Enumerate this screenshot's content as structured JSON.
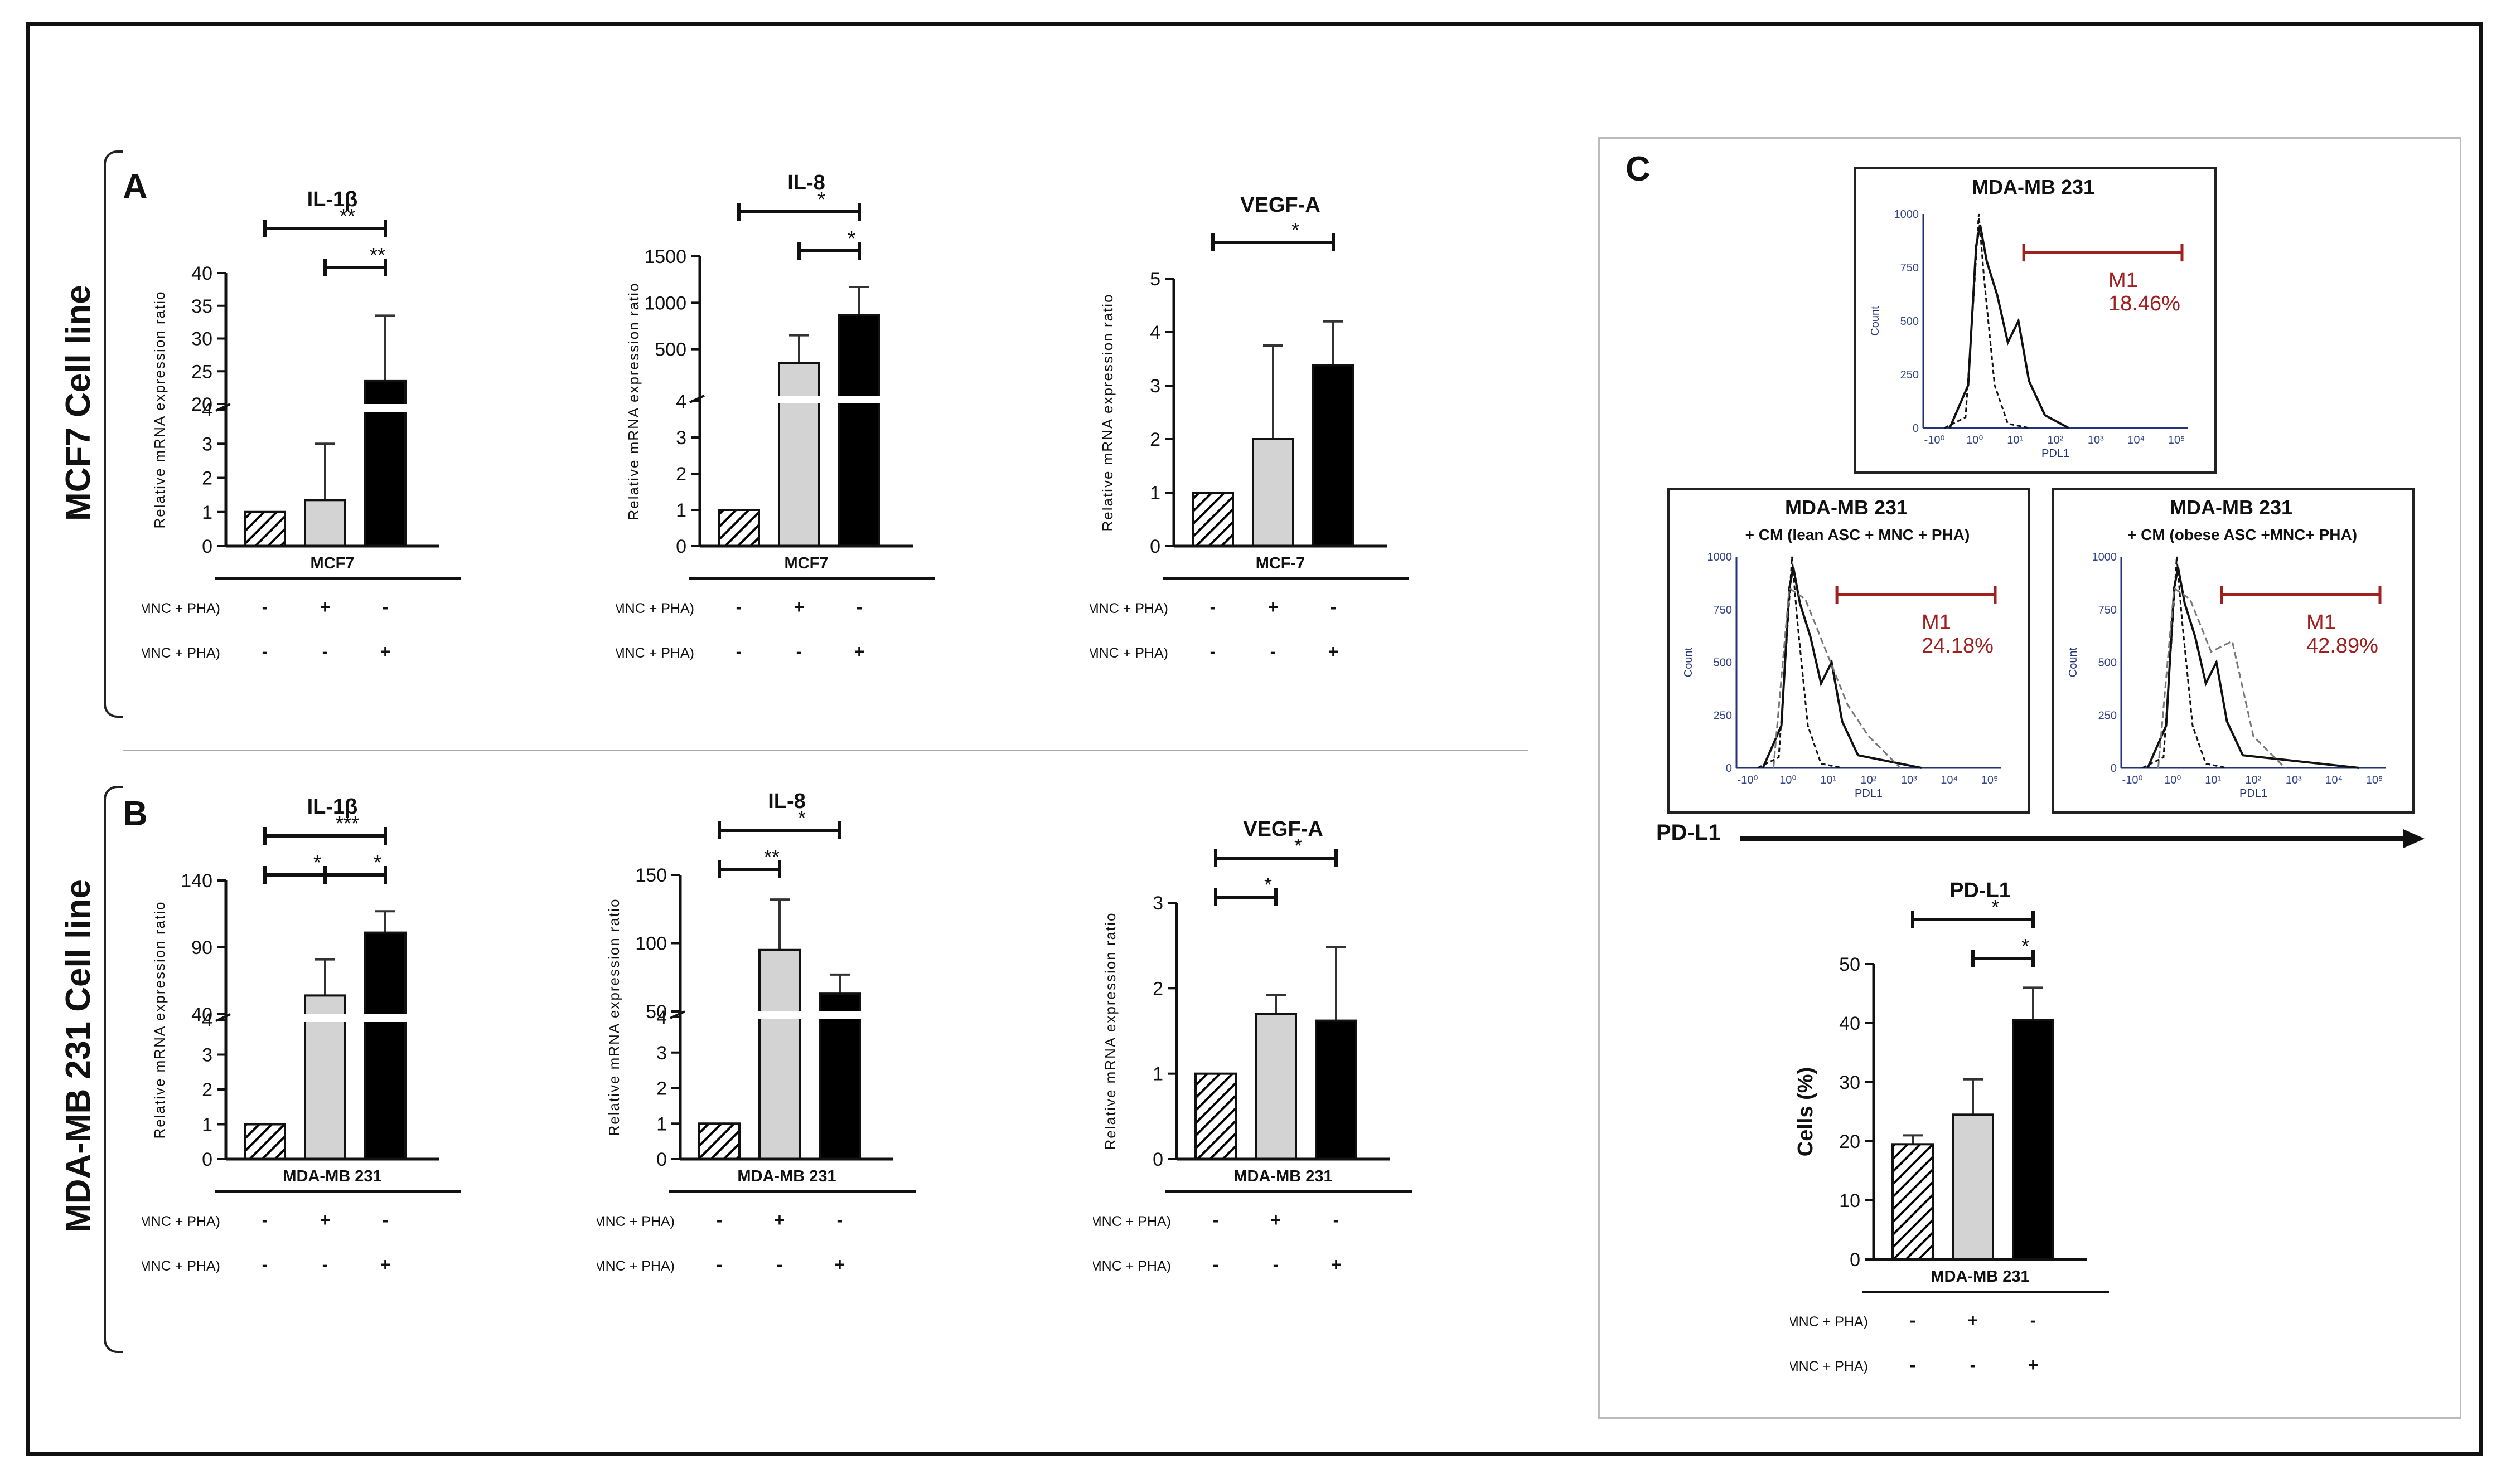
{
  "row_labels": {
    "top": "MCF7 Cell line",
    "bottom": "MDA-MB 231 Cell line"
  },
  "panel_letters": {
    "a": "A",
    "b": "B",
    "c": "C"
  },
  "conditions": {
    "lean": "CM (lean ASC + MNC + PHA)",
    "obese": "CM (obese ASC + MNC + PHA)"
  },
  "colors": {
    "control": "hatched",
    "lean": "#d3d3d3",
    "obese": "#000000",
    "gate": "#a02020"
  },
  "chart_data": [
    {
      "id": "a-il1b",
      "type": "bar",
      "title": "IL-1β",
      "group_label": "MCF7",
      "ylabel": "Relative mRNA expression ratio",
      "axis_break": true,
      "ylim_lower": [
        0,
        4
      ],
      "ylim_upper": [
        20,
        40
      ],
      "yticks_lower": [
        "0",
        "1",
        "2",
        "3",
        "4"
      ],
      "yticks_upper": [
        "20",
        "25",
        "30",
        "35",
        "40"
      ],
      "categories": [
        "control",
        "lean",
        "obese"
      ],
      "values": [
        1,
        1.35,
        23.5
      ],
      "errors": [
        0,
        1.65,
        10
      ],
      "lean_signs": [
        "-",
        "+",
        "-"
      ],
      "obese_signs": [
        "-",
        "-",
        "+"
      ],
      "significance": [
        {
          "from": 0,
          "to": 2,
          "label": "**"
        },
        {
          "from": 1,
          "to": 2,
          "label": "**"
        }
      ]
    },
    {
      "id": "a-il8",
      "type": "bar",
      "title": "IL-8",
      "group_label": "MCF7",
      "ylabel": "Relative mRNA expression ratio",
      "axis_break": true,
      "ylim_lower": [
        0,
        4
      ],
      "ylim_upper": [
        0,
        1500
      ],
      "yticks_lower": [
        "0",
        "1",
        "2",
        "3",
        "4"
      ],
      "yticks_upper": [
        "500",
        "1000",
        "1500"
      ],
      "categories": [
        "control",
        "lean",
        "obese"
      ],
      "values": [
        1,
        350,
        870
      ],
      "errors": [
        0,
        300,
        300
      ],
      "lean_signs": [
        "-",
        "+",
        "-"
      ],
      "obese_signs": [
        "-",
        "-",
        "+"
      ],
      "significance": [
        {
          "from": 0,
          "to": 2,
          "label": "*"
        },
        {
          "from": 1,
          "to": 2,
          "label": "*"
        }
      ]
    },
    {
      "id": "a-vegfa",
      "type": "bar",
      "title": "VEGF-A",
      "group_label": "MCF-7",
      "ylabel": "Relative mRNA expression ratio",
      "axis_break": false,
      "ylim": [
        0,
        5
      ],
      "yticks": [
        "0",
        "1",
        "2",
        "3",
        "4",
        "5"
      ],
      "categories": [
        "control",
        "lean",
        "obese"
      ],
      "values": [
        1,
        2.0,
        3.38
      ],
      "errors": [
        0,
        1.75,
        0.82
      ],
      "lean_signs": [
        "-",
        "+",
        "-"
      ],
      "obese_signs": [
        "-",
        "-",
        "+"
      ],
      "significance": [
        {
          "from": 0,
          "to": 2,
          "label": "*"
        }
      ]
    },
    {
      "id": "b-il1b",
      "type": "bar",
      "title": "IL-1β",
      "group_label": "MDA-MB 231",
      "ylabel": "Relative mRNA expression ratio",
      "axis_break": true,
      "ylim_lower": [
        0,
        4
      ],
      "ylim_upper": [
        40,
        140
      ],
      "yticks_lower": [
        "0",
        "1",
        "2",
        "3",
        "4"
      ],
      "yticks_upper": [
        "40",
        "90",
        "140"
      ],
      "categories": [
        "control",
        "lean",
        "obese"
      ],
      "values": [
        1,
        54,
        101
      ],
      "errors": [
        0,
        27,
        16
      ],
      "lean_signs": [
        "-",
        "+",
        "-"
      ],
      "obese_signs": [
        "-",
        "-",
        "+"
      ],
      "significance": [
        {
          "from": 0,
          "to": 1,
          "label": "*"
        },
        {
          "from": 0,
          "to": 2,
          "label": "***"
        },
        {
          "from": 1,
          "to": 2,
          "label": "*"
        }
      ]
    },
    {
      "id": "b-il8",
      "type": "bar",
      "title": "IL-8",
      "group_label": "MDA-MB 231",
      "ylabel": "Relative mRNA expression ratio",
      "axis_break": true,
      "ylim_lower": [
        0,
        4
      ],
      "ylim_upper": [
        50,
        150
      ],
      "yticks_lower": [
        "0",
        "1",
        "2",
        "3",
        "4"
      ],
      "yticks_upper": [
        "50",
        "100",
        "150"
      ],
      "categories": [
        "control",
        "lean",
        "obese"
      ],
      "values": [
        1,
        95,
        63
      ],
      "errors": [
        0,
        37,
        14
      ],
      "lean_signs": [
        "-",
        "+",
        "-"
      ],
      "obese_signs": [
        "-",
        "-",
        "+"
      ],
      "significance": [
        {
          "from": 0,
          "to": 1,
          "label": "**"
        },
        {
          "from": 0,
          "to": 2,
          "label": "*"
        }
      ]
    },
    {
      "id": "b-vegfa",
      "type": "bar",
      "title": "VEGF-A",
      "group_label": "MDA-MB 231",
      "ylabel": "Relative mRNA expression ratio",
      "axis_break": false,
      "ylim": [
        0,
        3
      ],
      "yticks": [
        "0",
        "1",
        "2",
        "3"
      ],
      "categories": [
        "control",
        "lean",
        "obese"
      ],
      "values": [
        1,
        1.7,
        1.62
      ],
      "errors": [
        0,
        0.22,
        0.86
      ],
      "lean_signs": [
        "-",
        "+",
        "-"
      ],
      "obese_signs": [
        "-",
        "-",
        "+"
      ],
      "significance": [
        {
          "from": 0,
          "to": 1,
          "label": "*"
        },
        {
          "from": 0,
          "to": 2,
          "label": "*"
        }
      ]
    },
    {
      "id": "c-pdl1",
      "type": "bar",
      "title": "PD-L1",
      "group_label": "MDA-MB 231",
      "ylabel": "Cells (%)",
      "axis_break": false,
      "ylim": [
        0,
        50
      ],
      "yticks": [
        "0",
        "10",
        "20",
        "30",
        "40",
        "50"
      ],
      "categories": [
        "control",
        "lean",
        "obese"
      ],
      "values": [
        19.5,
        24.5,
        40.5
      ],
      "errors": [
        1.5,
        6,
        5.5
      ],
      "lean_signs": [
        "-",
        "+",
        "-"
      ],
      "obese_signs": [
        "-",
        "-",
        "+"
      ],
      "significance": [
        {
          "from": 0,
          "to": 2,
          "label": "*"
        },
        {
          "from": 1,
          "to": 2,
          "label": "*"
        }
      ]
    }
  ],
  "histograms": {
    "axis_label": "PD-L1",
    "ylabel": "Count",
    "xlabel": "PDL1",
    "yticks": [
      "0",
      "250",
      "500",
      "750",
      "1000"
    ],
    "xticks": [
      "-10⁰",
      "10⁰",
      "10¹",
      "10²",
      "10³",
      "10⁴",
      "10⁵"
    ],
    "marker_name": "M1",
    "panels": [
      {
        "id": "h1",
        "title": "MDA-MB 231",
        "subtitle": "",
        "percent": "18.46%"
      },
      {
        "id": "h2",
        "title": "MDA-MB 231",
        "subtitle": "+ CM (lean ASC + MNC + PHA)",
        "percent": "24.18%"
      },
      {
        "id": "h3",
        "title": "MDA-MB 231",
        "subtitle": "+ CM (obese ASC +MNC+ PHA)",
        "percent": "42.89%"
      }
    ]
  }
}
